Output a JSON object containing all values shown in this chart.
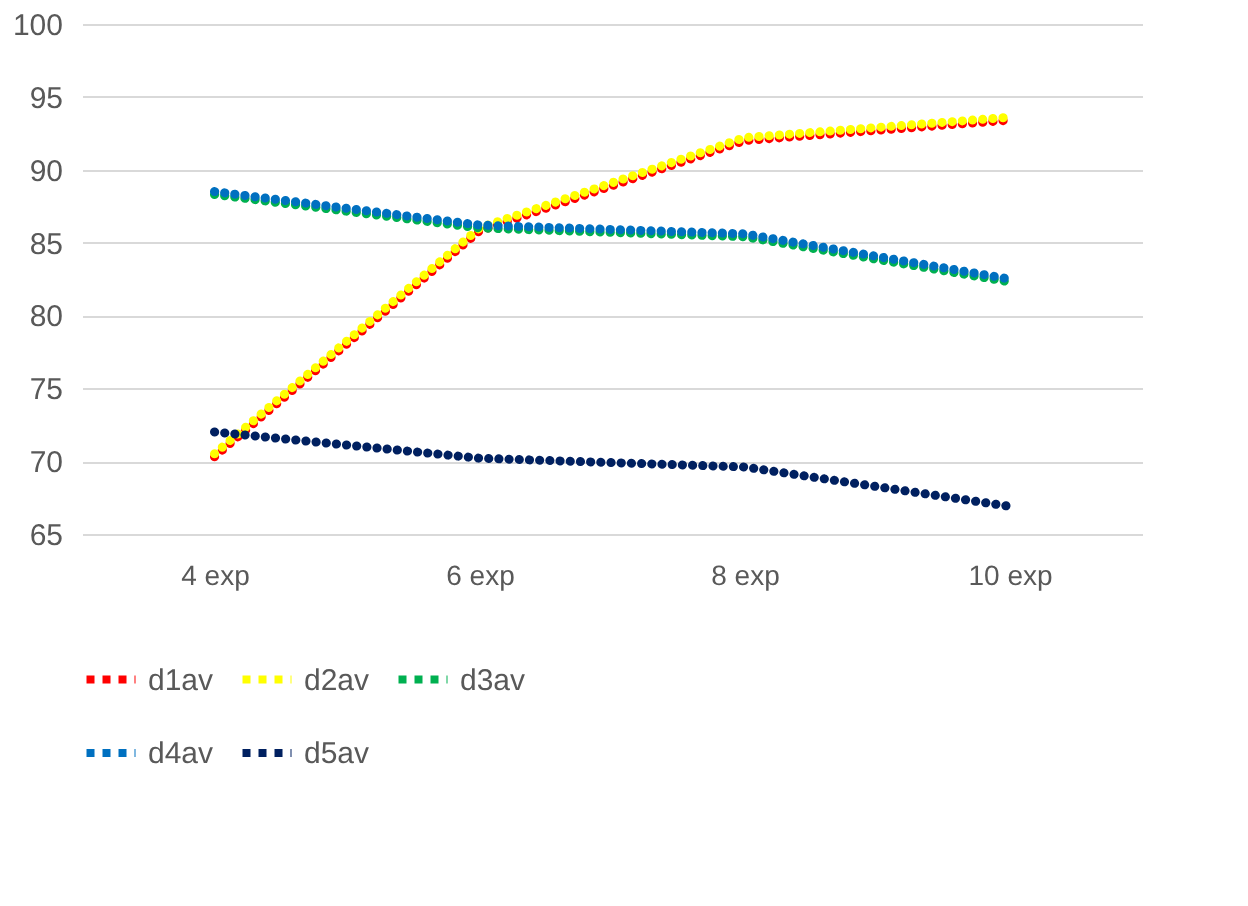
{
  "chart_data": {
    "type": "line",
    "categories": [
      "4 exp",
      "6 exp",
      "8 exp",
      "10 exp"
    ],
    "series": [
      {
        "name": "d1av",
        "color": "#ff0000",
        "values": [
          70.3,
          85.8,
          92.0,
          93.4
        ]
      },
      {
        "name": "d2av",
        "color": "#ffff00",
        "values": [
          70.5,
          86.0,
          92.2,
          93.6
        ]
      },
      {
        "name": "d3av",
        "color": "#00b050",
        "values": [
          88.3,
          86.0,
          85.4,
          82.3
        ]
      },
      {
        "name": "d4av",
        "color": "#0070c0",
        "values": [
          88.5,
          86.2,
          85.6,
          82.5
        ]
      },
      {
        "name": "d5av",
        "color": "#002060",
        "values": [
          72.0,
          70.2,
          69.6,
          66.9
        ]
      }
    ],
    "ylim": [
      65,
      100
    ],
    "yticks": [
      65,
      70,
      75,
      80,
      85,
      90,
      95,
      100
    ],
    "grid": "y",
    "legend": "bottom",
    "line_style": "dotted"
  }
}
